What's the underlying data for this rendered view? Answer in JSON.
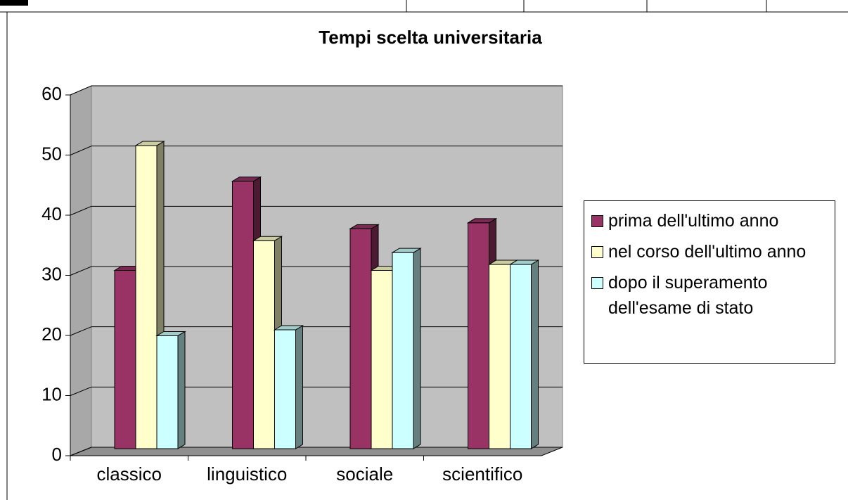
{
  "chart_data": {
    "type": "bar3d",
    "title": "Tempi scelta universitaria",
    "categories": [
      "classico",
      "linguistico",
      "sociale",
      "scientifico"
    ],
    "series": [
      {
        "name": "prima dell'ultimo anno",
        "color": "#993366",
        "values": [
          30,
          45,
          37,
          38
        ]
      },
      {
        "name": "nel corso dell'ultimo anno",
        "color": "#FFFFCC",
        "values": [
          51,
          35,
          30,
          31
        ]
      },
      {
        "name": "dopo il superamento dell'esame di stato",
        "color": "#CCFFFF",
        "values": [
          19,
          20,
          33,
          31
        ]
      }
    ],
    "ylim": [
      0,
      60
    ],
    "yticks": [
      0,
      10,
      20,
      30,
      40,
      50,
      60
    ],
    "grid": true,
    "legend": "right"
  }
}
